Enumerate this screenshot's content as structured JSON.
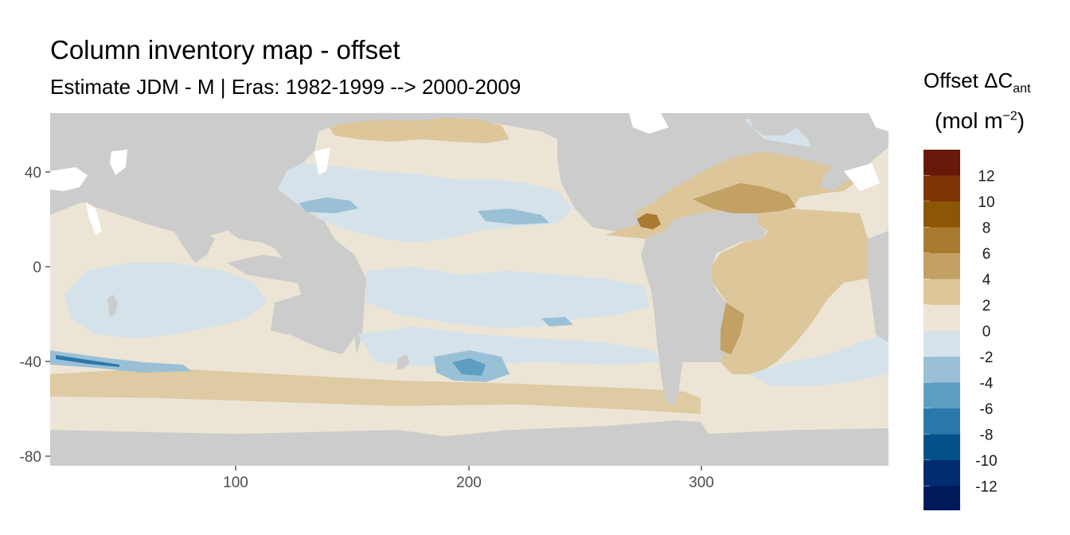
{
  "title": "Column inventory map - offset",
  "subtitle": "Estimate JDM - M | Eras: 1982-1999 --> 2000-2009",
  "legend": {
    "title": "Offset ΔC",
    "title_sub": "ant",
    "unit_open": "(mol m",
    "unit_sup": "−2",
    "unit_close": ")",
    "bins": [
      {
        "label": "12",
        "color": "#67190a"
      },
      {
        "label": "10",
        "color": "#7f3408"
      },
      {
        "label": "8",
        "color": "#8b5605"
      },
      {
        "label": "6",
        "color": "#a97a2f"
      },
      {
        "label": "4",
        "color": "#c3a063"
      },
      {
        "label": "2",
        "color": "#dcc69a"
      },
      {
        "label": "0",
        "color": "#ece5d6"
      },
      {
        "label": "-2",
        "color": "#d5e2ea"
      },
      {
        "label": "-4",
        "color": "#9ac0d6"
      },
      {
        "label": "-6",
        "color": "#5e9ec2"
      },
      {
        "label": "-8",
        "color": "#2c78ab"
      },
      {
        "label": "-10",
        "color": "#06508a"
      },
      {
        "label": "-12",
        "color": "#002c70"
      }
    ],
    "extra_bottom_color": "#001a5c"
  },
  "axes": {
    "x_ticks": [
      "100",
      "200",
      "300"
    ],
    "y_ticks": [
      "40",
      "0",
      "-40",
      "-80"
    ],
    "x_range": [
      20,
      380
    ],
    "y_range": [
      -85,
      65
    ]
  },
  "colors": {
    "land": "#cccccc",
    "no_data": "#ffffff",
    "ocean_light": "#ece5d6",
    "ocean_neg": "#d5e2ea"
  }
}
